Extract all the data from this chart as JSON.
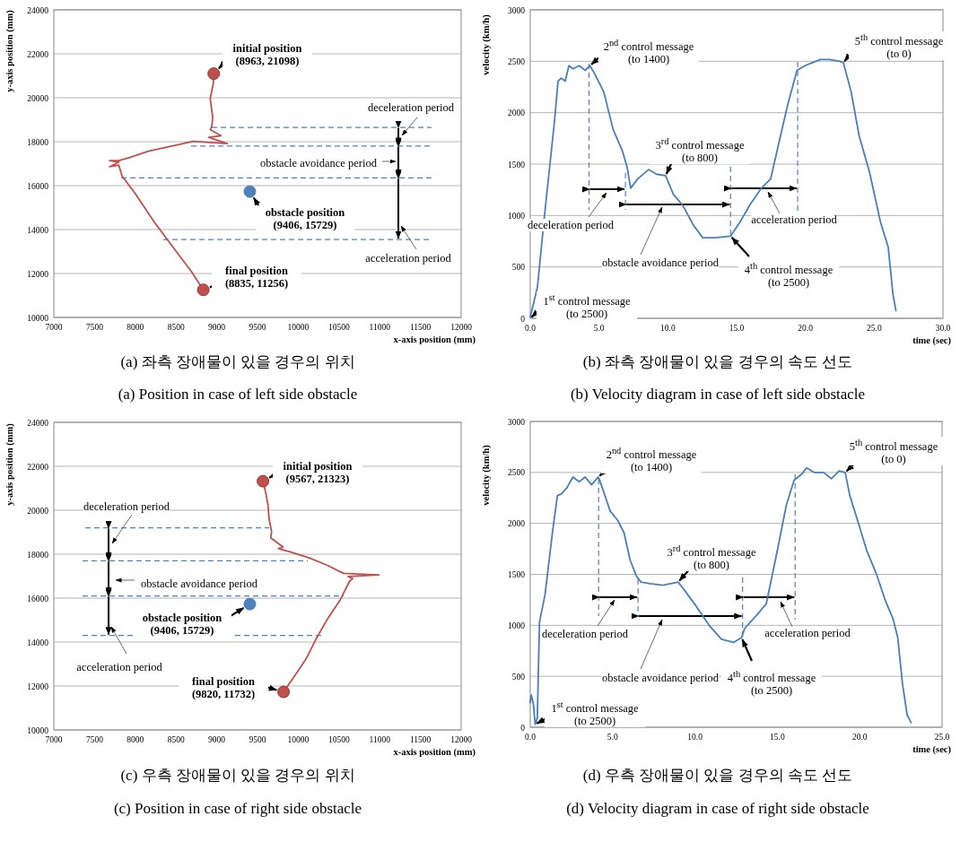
{
  "chart_data": [
    {
      "type": "line",
      "xlabel": "x-axis position (mm)",
      "ylabel": "y-axis position (mm)",
      "xlim": [
        7000,
        12000
      ],
      "ylim": [
        10000,
        24000
      ],
      "xticks": [
        7000,
        7500,
        8000,
        8500,
        9000,
        9500,
        10000,
        10500,
        11000,
        11500,
        12000
      ],
      "yticks": [
        10000,
        12000,
        14000,
        16000,
        18000,
        20000,
        22000,
        24000
      ],
      "grid": "y",
      "series": [
        {
          "type": "line",
          "color": "#c0504d",
          "x": [
            8963,
            8958,
            8920,
            8950,
            8939,
            8920,
            9053,
            8901,
            9129,
            8711,
            8160,
            7932,
            7798,
            7684,
            7798,
            7684,
            7798,
            7837,
            8008,
            8236,
            8464,
            8692,
            8835
          ],
          "values": [
            21098,
            20662,
            19958,
            19113,
            18690,
            18549,
            18268,
            18197,
            17915,
            18014,
            17563,
            17282,
            17141,
            17141,
            17070,
            16859,
            16930,
            16437,
            15592,
            14324,
            13197,
            12070,
            11256
          ]
        },
        {
          "type": "scatter",
          "marker": "circle",
          "color": "#c0504d",
          "x": [
            8963,
            8835
          ],
          "values": [
            21098,
            11256
          ]
        },
        {
          "type": "scatter",
          "marker": "circle",
          "color": "#4f81bd",
          "x": [
            9406
          ],
          "values": [
            15729
          ]
        }
      ],
      "ref_lines": [
        {
          "axis": "y",
          "value": 18650,
          "color": "#4f81bd",
          "line_style": "dashed"
        },
        {
          "axis": "y",
          "value": 17800,
          "color": "#4f81bd",
          "line_style": "dashed"
        },
        {
          "axis": "y",
          "value": 16350,
          "color": "#4f81bd",
          "line_style": "dashed"
        },
        {
          "axis": "y",
          "value": 13550,
          "color": "#4f81bd",
          "line_style": "dashed"
        }
      ],
      "annotations": [
        {
          "text": "initial position (8963, 21098)",
          "x": 8963,
          "y": 21098
        },
        {
          "text": "obstacle position (9406, 15729)",
          "x": 9406,
          "y": 15729
        },
        {
          "text": "final position (8835, 11256)",
          "x": 8835,
          "y": 11256
        },
        "deceleration period",
        "obstacle avoidance period",
        "acceleration period",
        "(a) 좌측 장애물이 있을 경우의 위치",
        "(a) Position in case of left side obstacle"
      ]
    },
    {
      "type": "line",
      "xlabel": "time (sec)",
      "ylabel": "velocity (km/h)",
      "xlim": [
        0,
        30
      ],
      "ylim": [
        0,
        3000
      ],
      "xticks": [
        {
          "value": 0,
          "label": "0.0"
        },
        {
          "value": 5,
          "label": "5.0"
        },
        {
          "value": 10,
          "label": "10.0"
        },
        {
          "value": 15,
          "label": "15.0"
        },
        {
          "value": 20,
          "label": "20.0"
        },
        {
          "value": 25,
          "label": "25.0"
        },
        {
          "value": 30,
          "label": "30.0"
        }
      ],
      "yticks": [
        0,
        500,
        1000,
        1500,
        2000,
        2500,
        3000
      ],
      "grid": "y",
      "series": [
        {
          "type": "line",
          "color": "#4a7ebb",
          "x": [
            0,
            0.52,
            1.08,
            1.75,
            2.02,
            2.25,
            2.54,
            2.81,
            3.1,
            3.55,
            4.0,
            4.34,
            4.67,
            5.35,
            6.02,
            6.7,
            7.03,
            7.3,
            7.82,
            8.6,
            9.17,
            9.84,
            10.4,
            11.08,
            11.87,
            12.54,
            13.44,
            14.56,
            15.24,
            16.02,
            16.8,
            17.48,
            18.04,
            18.72,
            19.39,
            19.96,
            20.52,
            21.08,
            21.75,
            22.43,
            22.76,
            23.33,
            23.9,
            24.67,
            25.46,
            26.02,
            26.36,
            26.58
          ],
          "values": [
            15,
            301,
            1055,
            1899,
            2306,
            2336,
            2306,
            2457,
            2427,
            2457,
            2412,
            2457,
            2382,
            2201,
            1839,
            1628,
            1477,
            1266,
            1357,
            1447,
            1402,
            1387,
            1206,
            1100,
            904,
            784,
            784,
            799,
            935,
            1115,
            1266,
            1357,
            1688,
            2080,
            2412,
            2457,
            2487,
            2517,
            2517,
            2502,
            2487,
            2201,
            1779,
            1417,
            935,
            693,
            241,
            75
          ]
        }
      ],
      "ref_lines": [
        {
          "axis": "x",
          "value": 4.27,
          "color": "#4f81bd",
          "line_style": "dashed"
        },
        {
          "axis": "x",
          "value": 6.92,
          "color": "#4f81bd",
          "line_style": "dashed"
        },
        {
          "axis": "x",
          "value": 14.56,
          "color": "#4f81bd",
          "line_style": "dashed"
        },
        {
          "axis": "x",
          "value": 19.44,
          "color": "#4f81bd",
          "line_style": "dashed"
        }
      ],
      "annotations": [
        {
          "text": "1$^{st}$ control message (to 2500)",
          "x": 0,
          "y": 0
        },
        {
          "text": "2$^{nd}$ control message (to 1400)",
          "x": 4.34,
          "y": 2457
        },
        {
          "text": "3$^{rd}$ control message (to 800)",
          "x": 9.84,
          "y": 1387
        },
        {
          "text": "4$^{th}$ control message (to 2500)",
          "x": 14.56,
          "y": 799
        },
        {
          "text": "5$^{th}$ control message (to 0)",
          "x": 22.76,
          "y": 2487
        },
        "deceleration period",
        "obstacle avoidance period",
        "acceleration period",
        "(b) 좌측 장애물이 있을 경우의 속도 선도",
        "(b) Velocity diagram in case of left side obstacle"
      ]
    },
    {
      "type": "line",
      "xlabel": "x-axis position (mm)",
      "ylabel": "y-axis position (mm)",
      "xlim": [
        7000,
        12000
      ],
      "ylim": [
        10000,
        24000
      ],
      "xticks": [
        7000,
        7500,
        8000,
        8500,
        9000,
        9500,
        10000,
        10500,
        11000,
        11500,
        12000
      ],
      "yticks": [
        10000,
        12000,
        14000,
        16000,
        18000,
        20000,
        22000,
        24000
      ],
      "grid": "y",
      "series": [
        {
          "type": "line",
          "color": "#c0504d",
          "x": [
            9567,
            9597,
            9627,
            9643,
            9673,
            9662,
            9814,
            9757,
            9890,
            10137,
            10365,
            10555,
            10992,
            10612,
            10669,
            10631,
            10517,
            10365,
            10213,
            10099,
            9947,
            9820
          ],
          "values": [
            21323,
            20859,
            20296,
            19592,
            19028,
            18746,
            18324,
            18254,
            18113,
            17831,
            17479,
            17127,
            17056,
            16986,
            16887,
            16775,
            15930,
            15085,
            14099,
            13254,
            12409,
            11732
          ]
        },
        {
          "type": "scatter",
          "marker": "circle",
          "color": "#c0504d",
          "x": [
            9567,
            9820
          ],
          "values": [
            21323,
            11732
          ]
        },
        {
          "type": "scatter",
          "marker": "circle",
          "color": "#4f81bd",
          "x": [
            9406
          ],
          "values": [
            15729
          ]
        }
      ],
      "ref_lines": [
        {
          "axis": "y",
          "value": 19200,
          "color": "#4f81bd",
          "line_style": "dashed"
        },
        {
          "axis": "y",
          "value": 17700,
          "color": "#4f81bd",
          "line_style": "dashed"
        },
        {
          "axis": "y",
          "value": 16100,
          "color": "#4f81bd",
          "line_style": "dashed"
        },
        {
          "axis": "y",
          "value": 14300,
          "color": "#4f81bd",
          "line_style": "dashed"
        }
      ],
      "annotations": [
        {
          "text": "initial position (9567, 21323)",
          "x": 9567,
          "y": 21323
        },
        {
          "text": "obstacle position (9406, 15729)",
          "x": 9406,
          "y": 15729
        },
        {
          "text": "final position (9820, 11732)",
          "x": 9820,
          "y": 11732
        },
        "deceleration period",
        "obstacle avoidance period",
        "acceleration period",
        "(c) 우측 장애물이 있을 경우의 위치",
        "(c) Position in case of right side obstacle"
      ]
    },
    {
      "type": "line",
      "xlabel": "time (sec)",
      "ylabel": "velocity (km/h)",
      "xlim": [
        0,
        25
      ],
      "ylim": [
        0,
        3000
      ],
      "xticks": [
        {
          "value": 0,
          "label": "0.0"
        },
        {
          "value": 5,
          "label": "5.0"
        },
        {
          "value": 10,
          "label": "10.0"
        },
        {
          "value": 15,
          "label": "15.0"
        },
        {
          "value": 20,
          "label": "20.0"
        },
        {
          "value": 25,
          "label": "25.0"
        }
      ],
      "yticks": [
        0,
        500,
        1000,
        1500,
        2000,
        2500,
        3000
      ],
      "grid": "y",
      "series": [
        {
          "type": "line",
          "color": "#4a7ebb",
          "x": [
            0,
            0.06,
            0.19,
            0.3,
            0.43,
            0.56,
            0.9,
            1.37,
            1.65,
            1.88,
            2.22,
            2.59,
            2.97,
            3.34,
            3.72,
            4.13,
            4.28,
            4.85,
            5.31,
            5.69,
            6.07,
            6.44,
            6.72,
            7.29,
            8.04,
            8.98,
            9.35,
            10.1,
            10.86,
            11.61,
            12.36,
            12.83,
            13.02,
            13.86,
            14.33,
            14.99,
            15.55,
            16.02,
            16.49,
            16.77,
            17.24,
            17.81,
            18.28,
            18.75,
            19.12,
            19.4,
            19.87,
            20.44,
            20.99,
            21.56,
            22.03,
            22.31,
            22.6,
            22.88,
            23.12
          ],
          "values": [
            242,
            318,
            227,
            30,
            91,
            1030,
            1303,
            1939,
            2273,
            2288,
            2348,
            2455,
            2409,
            2455,
            2379,
            2455,
            2394,
            2121,
            2030,
            1909,
            1636,
            1485,
            1424,
            1409,
            1394,
            1424,
            1348,
            1182,
            1000,
            864,
            833,
            879,
            970,
            1121,
            1212,
            1727,
            2182,
            2424,
            2485,
            2545,
            2500,
            2500,
            2439,
            2515,
            2500,
            2273,
            2030,
            1727,
            1515,
            1242,
            1061,
            879,
            424,
            121,
            45
          ]
        }
      ],
      "ref_lines": [
        {
          "axis": "x",
          "value": 4.15,
          "color": "#4f81bd",
          "line_style": "dashed"
        },
        {
          "axis": "x",
          "value": 6.54,
          "color": "#4f81bd",
          "line_style": "dashed"
        },
        {
          "axis": "x",
          "value": 12.89,
          "color": "#4f81bd",
          "line_style": "dashed"
        },
        {
          "axis": "x",
          "value": 16.08,
          "color": "#4f81bd",
          "line_style": "dashed"
        }
      ],
      "annotations": [
        {
          "text": "1$^{st}$ control message (to 2500)",
          "x": 0.3,
          "y": 30
        },
        {
          "text": "2$^{nd}$ control message (to 1400)",
          "x": 4.13,
          "y": 2455
        },
        {
          "text": "3$^{rd}$ control message (to 800)",
          "x": 8.98,
          "y": 1424
        },
        {
          "text": "4$^{th}$ control message (to 2500)",
          "x": 12.83,
          "y": 879
        },
        {
          "text": "5$^{th}$ control message (to 0)",
          "x": 19.12,
          "y": 2500
        },
        "deceleration period",
        "obstacle avoidance period",
        "acceleration period",
        "(d) 우측 장애물이 있을 경우의 속도 선도",
        "(d) Velocity diagram in case of right side obstacle"
      ]
    }
  ]
}
